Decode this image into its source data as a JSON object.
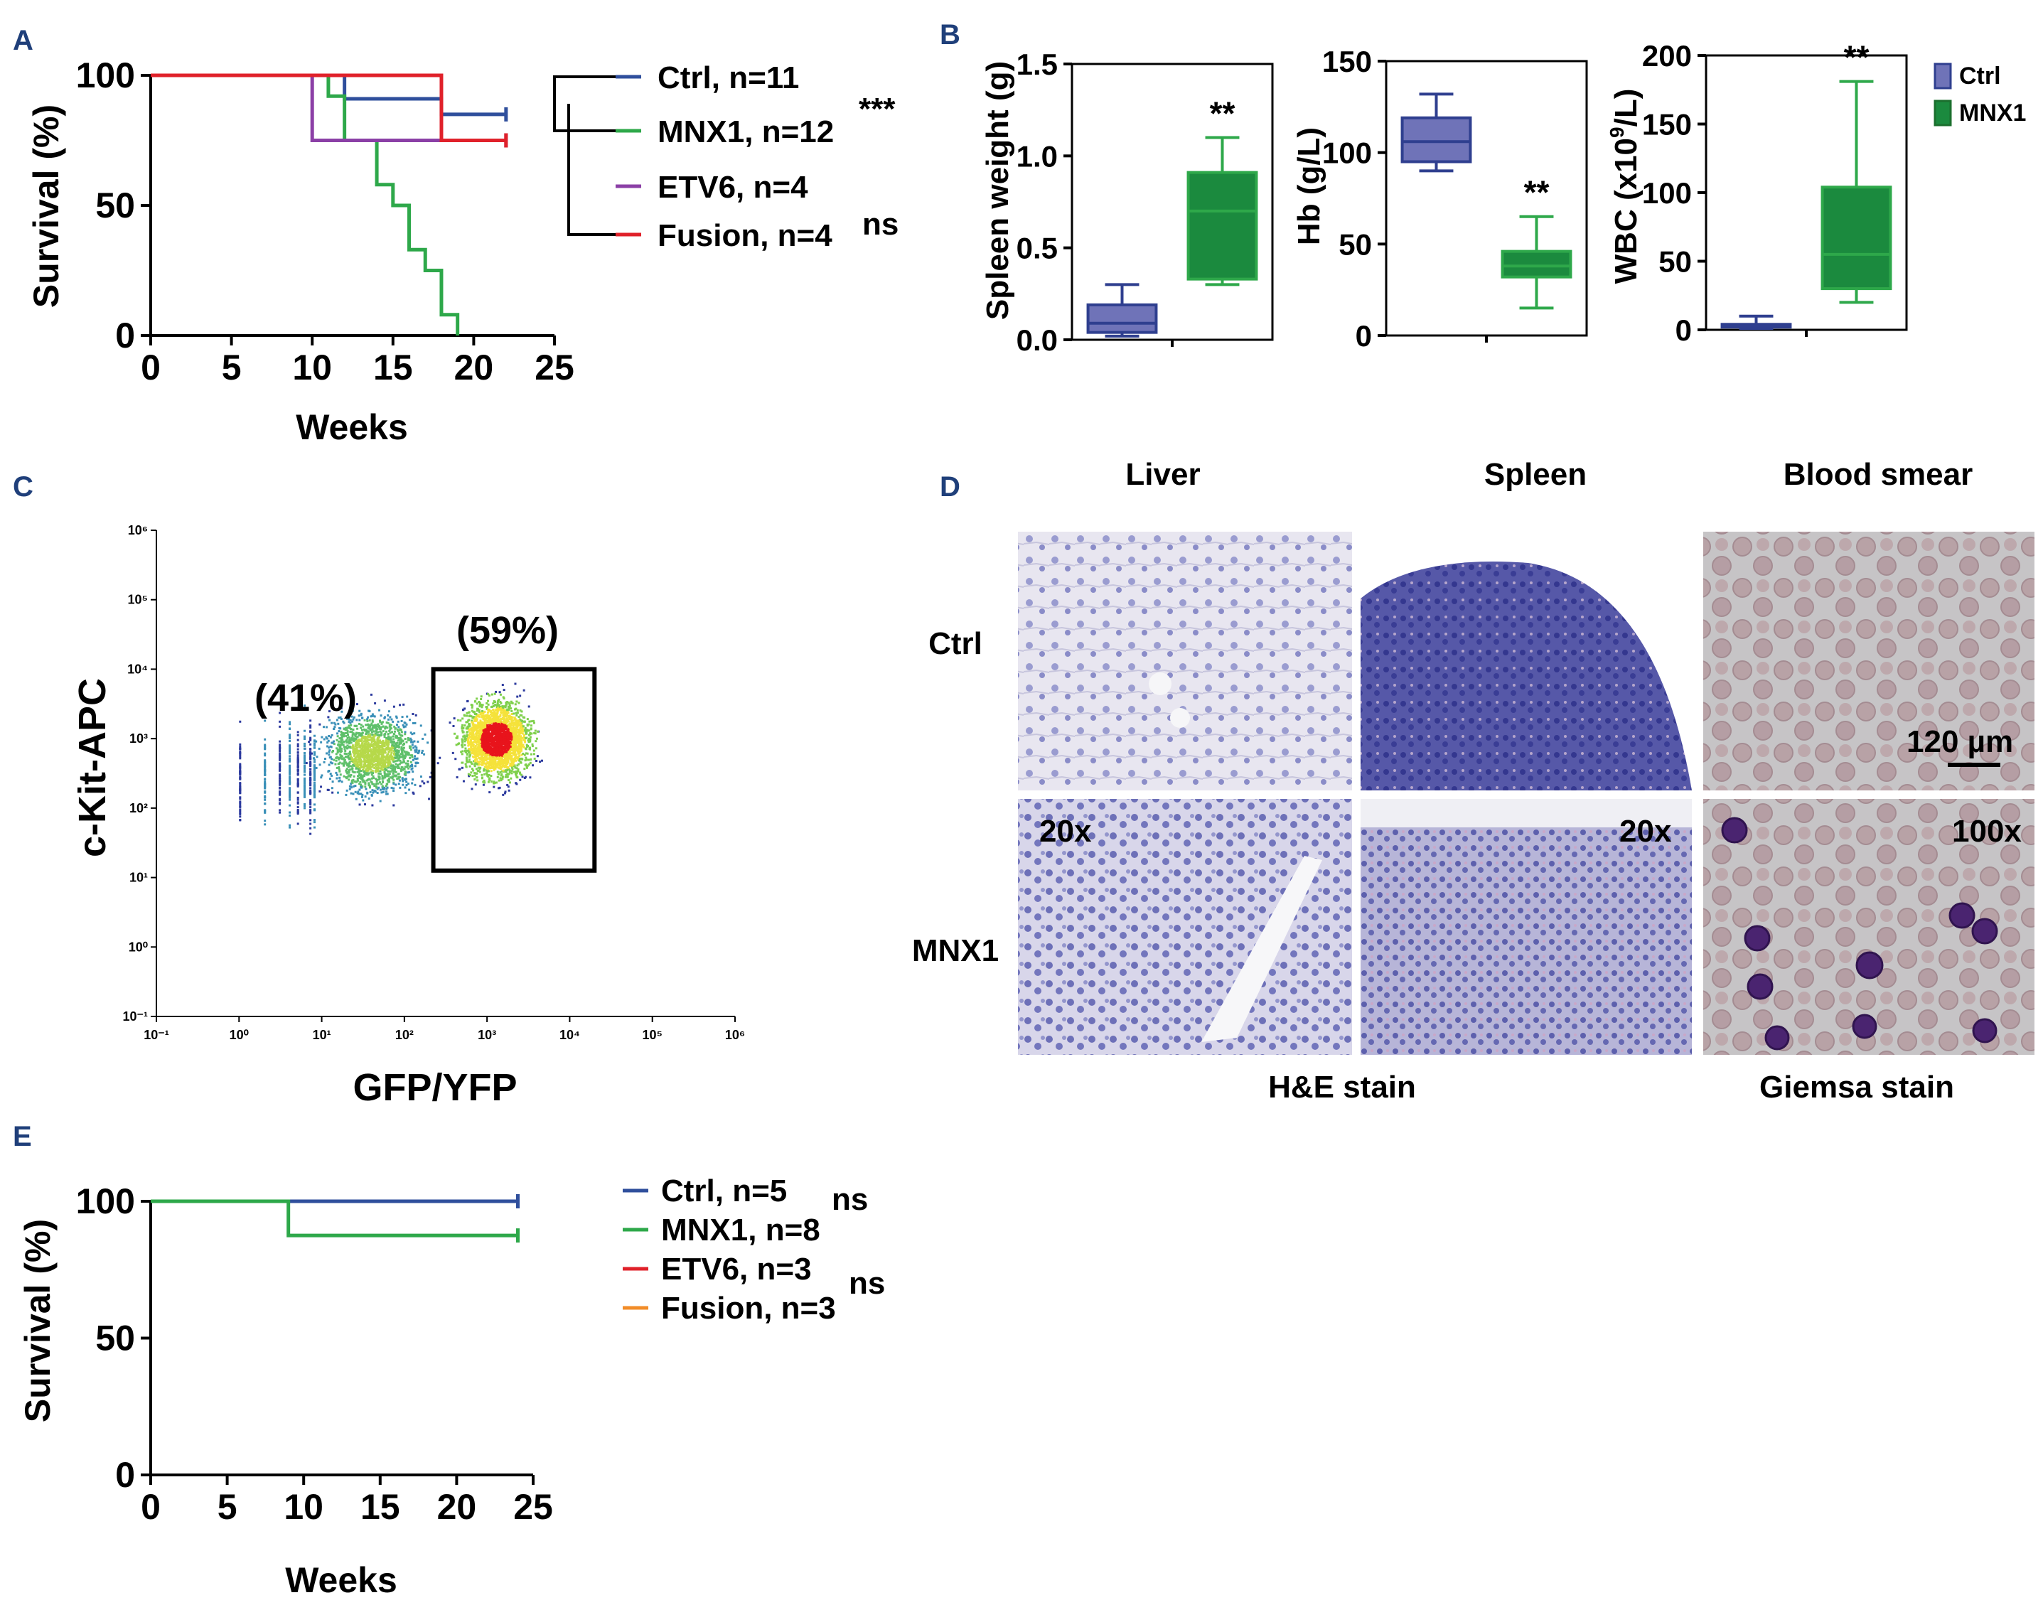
{
  "panel_labels": {
    "a": "A",
    "b": "B",
    "c": "C",
    "d": "D",
    "e": "E"
  },
  "colors": {
    "ctrl": "#2f4f9c",
    "mnx1": "#2ea84a",
    "etv6": "#8b3fa6",
    "fusion": "#e0212a",
    "fusion_e": "#f28c28",
    "ctrl_box": "#6f73b8",
    "mnx1_box": "#1b8a3e"
  },
  "chart_data": [
    {
      "id": "A",
      "type": "line",
      "title": "",
      "xlabel": "Weeks",
      "ylabel": "Survival (%)",
      "xlim": [
        0,
        25
      ],
      "ylim": [
        0,
        100
      ],
      "xticks": [
        "0",
        "5",
        "10",
        "15",
        "20",
        "25"
      ],
      "yticks": [
        "0",
        "50",
        "100"
      ],
      "series": [
        {
          "name": "Ctrl, n=11",
          "color": "#2f4f9c",
          "steps": [
            [
              0,
              100
            ],
            [
              12,
              100
            ],
            [
              12,
              91
            ],
            [
              18,
              91
            ],
            [
              18,
              85
            ],
            [
              22,
              85
            ]
          ]
        },
        {
          "name": "MNX1, n=12",
          "color": "#2ea84a",
          "steps": [
            [
              0,
              100
            ],
            [
              11,
              100
            ],
            [
              11,
              92
            ],
            [
              12,
              92
            ],
            [
              12,
              75
            ],
            [
              14,
              75
            ],
            [
              14,
              58
            ],
            [
              15,
              58
            ],
            [
              15,
              50
            ],
            [
              16,
              50
            ],
            [
              16,
              33
            ],
            [
              17,
              33
            ],
            [
              17,
              25
            ],
            [
              18,
              25
            ],
            [
              18,
              8
            ],
            [
              19,
              8
            ],
            [
              19,
              0
            ]
          ]
        },
        {
          "name": "ETV6, n=4",
          "color": "#8b3fa6",
          "steps": [
            [
              0,
              100
            ],
            [
              10,
              100
            ],
            [
              10,
              75
            ],
            [
              22,
              75
            ]
          ]
        },
        {
          "name": "Fusion, n=4",
          "color": "#e0212a",
          "steps": [
            [
              0,
              100
            ],
            [
              18,
              100
            ],
            [
              18,
              75
            ],
            [
              22,
              75
            ]
          ]
        }
      ],
      "significance": [
        "***",
        "ns"
      ]
    },
    {
      "id": "B1",
      "type": "box",
      "ylabel": "Spleen weight (g)",
      "ylim": [
        0,
        1.5
      ],
      "yticks": [
        "0.0",
        "0.5",
        "1.0",
        "1.5"
      ],
      "groups": [
        {
          "name": "Ctrl",
          "min": 0.02,
          "q1": 0.04,
          "median": 0.09,
          "q3": 0.19,
          "max": 0.3
        },
        {
          "name": "MNX1",
          "min": 0.3,
          "q1": 0.33,
          "median": 0.7,
          "q3": 0.91,
          "max": 1.1
        }
      ],
      "significance": "**"
    },
    {
      "id": "B2",
      "type": "box",
      "ylabel": "Hb (g/L)",
      "ylim": [
        0,
        150
      ],
      "yticks": [
        "0",
        "50",
        "100",
        "150"
      ],
      "groups": [
        {
          "name": "Ctrl",
          "min": 90,
          "q1": 95,
          "median": 106,
          "q3": 119,
          "max": 132
        },
        {
          "name": "MNX1",
          "min": 15,
          "q1": 32,
          "median": 38,
          "q3": 46,
          "max": 65
        }
      ],
      "significance": "**"
    },
    {
      "id": "B3",
      "type": "box",
      "ylabel": "WBC (x10",
      "ylabel_sup": "9",
      "ylabel_tail": "/L)",
      "ylim": [
        0,
        200
      ],
      "yticks": [
        "0",
        "50",
        "100",
        "150",
        "200"
      ],
      "groups": [
        {
          "name": "Ctrl",
          "min": 1,
          "q1": 2,
          "median": 3,
          "q3": 4,
          "max": 10
        },
        {
          "name": "MNX1",
          "min": 20,
          "q1": 30,
          "median": 55,
          "q3": 104,
          "max": 181
        }
      ],
      "significance": "**",
      "legend": [
        "Ctrl",
        "MNX1"
      ]
    },
    {
      "id": "C",
      "type": "scatter",
      "xlabel": "GFP/YFP",
      "ylabel": "c-Kit-APC",
      "xticks": [
        "10⁻¹",
        "10⁰",
        "10¹",
        "10²",
        "10³",
        "10⁴",
        "10⁵",
        "10⁶"
      ],
      "yticks": [
        "10⁻¹",
        "10⁰",
        "10¹",
        "10²",
        "10³",
        "10⁴",
        "10⁵",
        "10⁶"
      ],
      "gates": [
        {
          "label": "(41%)",
          "percent": 41
        },
        {
          "label": "(59%)",
          "percent": 59
        }
      ],
      "populations": [
        {
          "name": "GFP-negative",
          "center_log_x": 1.6,
          "center_log_y": 2.8
        },
        {
          "name": "GFP-positive",
          "center_log_x": 3.1,
          "center_log_y": 3.0
        }
      ]
    },
    {
      "id": "E",
      "type": "line",
      "xlabel": "Weeks",
      "ylabel": "Survival (%)",
      "xlim": [
        0,
        25
      ],
      "ylim": [
        0,
        100
      ],
      "xticks": [
        "0",
        "5",
        "10",
        "15",
        "20",
        "25"
      ],
      "yticks": [
        "0",
        "50",
        "100"
      ],
      "series": [
        {
          "name": "Ctrl, n=5",
          "color": "#2f4f9c",
          "steps": [
            [
              0,
              100
            ],
            [
              24,
              100
            ]
          ]
        },
        {
          "name": "MNX1, n=8",
          "color": "#2ea84a",
          "steps": [
            [
              0,
              100
            ],
            [
              9,
              100
            ],
            [
              9,
              87.5
            ],
            [
              24,
              87.5
            ]
          ]
        },
        {
          "name": "ETV6, n=3",
          "color": "#e0212a",
          "steps": []
        },
        {
          "name": "Fusion, n=3",
          "color": "#f28c28",
          "steps": []
        }
      ],
      "significance": [
        "ns",
        "ns"
      ]
    }
  ],
  "panel_d": {
    "columns": [
      "Liver",
      "Spleen",
      "Blood smear"
    ],
    "rows": [
      "Ctrl",
      "MNX1"
    ],
    "magnifications": [
      "20x",
      "20x",
      "100x"
    ],
    "scale_bar": "120 µm",
    "stains": [
      "H&E stain",
      "Giemsa stain"
    ]
  }
}
